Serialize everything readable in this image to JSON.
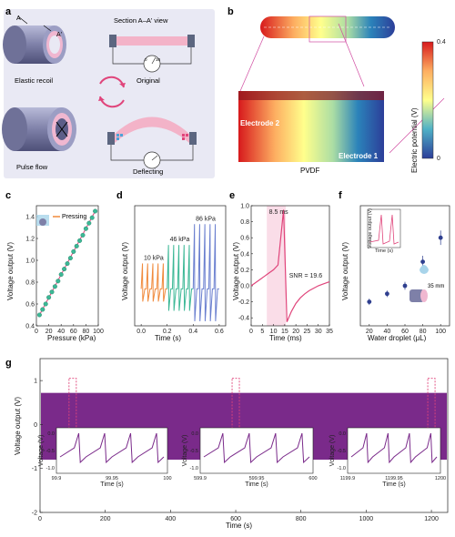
{
  "panels": {
    "a": {
      "label": "a",
      "section_title": "Section A–A' view",
      "marker_a": "A",
      "marker_a_prime": "A'",
      "elastic_recoil": "Elastic recoil",
      "original": "Original",
      "pulse_flow": "Pulse flow",
      "deflecting": "Deflecting",
      "meter_min": "0",
      "meter_max": "10",
      "colors": {
        "panel_bg": "#e9e9f4",
        "tube": "#7e80a8",
        "ring": "#f0b7d0",
        "beam": "#f3b3c8",
        "arrow": "#e0457b"
      }
    },
    "b": {
      "label": "b",
      "electrode2": "Electrode 2",
      "electrode1": "Electrode 1",
      "pvdf": "PVDF",
      "colorbar_label": "Electric potential (V)",
      "colorbar_max": "0.4",
      "colorbar_min": "0"
    },
    "c": {
      "label": "c",
      "legend": "Pressing"
    },
    "d": {
      "label": "d"
    },
    "e": {
      "label": "e"
    },
    "f": {
      "label": "f",
      "annotation": "35 mm"
    },
    "g": {
      "label": "g"
    }
  },
  "chart_data": [
    {
      "id": "c",
      "type": "scatter",
      "xlabel": "Pressure (kPa)",
      "ylabel": "Voltage output (V)",
      "xlim": [
        0,
        100
      ],
      "ylim": [
        0.4,
        1.5
      ],
      "xticks": [
        "0",
        "20",
        "40",
        "60",
        "80",
        "100"
      ],
      "yticks": [
        "0.4",
        "0.6",
        "0.8",
        "1.0",
        "1.2",
        "1.4"
      ],
      "x": [
        5,
        10,
        15,
        20,
        25,
        30,
        35,
        40,
        45,
        50,
        55,
        60,
        65,
        70,
        75,
        80,
        85,
        90,
        95
      ],
      "y": [
        0.5,
        0.55,
        0.6,
        0.66,
        0.71,
        0.76,
        0.81,
        0.87,
        0.92,
        0.97,
        1.02,
        1.08,
        1.13,
        1.18,
        1.23,
        1.29,
        1.34,
        1.39,
        1.45
      ],
      "fit_line": true,
      "colors": [
        "#3cb896",
        "#e0457b"
      ]
    },
    {
      "id": "d",
      "type": "line",
      "xlabel": "Time (s)",
      "ylabel": "Voltage output (V)",
      "xlim": [
        -0.05,
        0.65
      ],
      "ylim": [
        -0.8,
        1.8
      ],
      "xticks": [
        "0.0",
        "0.2",
        "0.4",
        "0.6"
      ],
      "series": [
        {
          "label": "10 kPa",
          "t_start": 0.0,
          "t_end": 0.2,
          "amplitude": 0.55,
          "color": "#f08a3c"
        },
        {
          "label": "46 kPa",
          "t_start": 0.2,
          "t_end": 0.4,
          "amplitude": 0.95,
          "color": "#3cb896"
        },
        {
          "label": "86 kPa",
          "t_start": 0.4,
          "t_end": 0.6,
          "amplitude": 1.4,
          "color": "#6a7fcf"
        }
      ]
    },
    {
      "id": "e",
      "type": "line",
      "xlabel": "Time (ms)",
      "ylabel": "Voltage output (V)",
      "xlim": [
        0,
        35
      ],
      "ylim": [
        -0.5,
        1.0
      ],
      "xticks": [
        "0",
        "5",
        "10",
        "15",
        "20",
        "25",
        "30",
        "35"
      ],
      "yticks": [
        "-0.4",
        "-0.2",
        "0.0",
        "0.2",
        "0.4",
        "0.6",
        "0.8",
        "1.0"
      ],
      "t": [
        0,
        2,
        4,
        6,
        8,
        10,
        12,
        14.5,
        16,
        18,
        20,
        22,
        24,
        26,
        28,
        30,
        32,
        34,
        35
      ],
      "v": [
        0.0,
        0.04,
        0.08,
        0.12,
        0.16,
        0.2,
        0.26,
        0.95,
        -0.45,
        -0.32,
        -0.22,
        -0.15,
        -0.1,
        -0.06,
        -0.03,
        0.0,
        0.02,
        0.04,
        0.05
      ],
      "annotations": {
        "duration": "8.5 ms",
        "snr": "SNR = 19.6"
      },
      "color": "#e0457b"
    },
    {
      "id": "f",
      "type": "scatter",
      "xlabel": "Water droplet (μL)",
      "ylabel": "Voltage output (V)",
      "xlim": [
        10,
        110
      ],
      "ylim": [
        0.04,
        0.34
      ],
      "xticks": [
        "20",
        "40",
        "60",
        "80",
        "100"
      ],
      "x": [
        20,
        40,
        60,
        80,
        100
      ],
      "y": [
        0.1,
        0.12,
        0.14,
        0.2,
        0.26
      ],
      "err": [
        0.008,
        0.008,
        0.01,
        0.015,
        0.018
      ],
      "inset": {
        "ylabel": "Voltage output (V)",
        "xlabel": "Time (s)"
      },
      "color": "#2f3f8f"
    },
    {
      "id": "g",
      "type": "line",
      "xlabel": "Time (s)",
      "ylabel": "Voltage output (V)",
      "xlim": [
        0,
        1250
      ],
      "ylim": [
        -2,
        1.5
      ],
      "xticks": [
        "0",
        "200",
        "400",
        "600",
        "800",
        "1000",
        "1200"
      ],
      "yticks": [
        "1",
        "0",
        "-1",
        "-2"
      ],
      "band": {
        "high": 0.72,
        "low": -0.8
      },
      "highlight_windows": [
        100,
        600,
        1200
      ],
      "color": "#7a2a8a",
      "insets": [
        {
          "xticks": [
            "99.9",
            "99.95",
            "100"
          ],
          "yticks": [
            "0.0",
            "-0.5",
            "-1.0"
          ],
          "ylabel": "Voltage (V)",
          "xlabel": "Time (s)"
        },
        {
          "xticks": [
            "599.9",
            "599.95",
            "600"
          ],
          "yticks": [
            "0.0",
            "-0.5",
            "-1.0"
          ],
          "ylabel": "Voltage (V)",
          "xlabel": "Time (s)"
        },
        {
          "xticks": [
            "1199.9",
            "1199.95",
            "1200"
          ],
          "yticks": [
            "0.0",
            "-0.5",
            "-1.0"
          ],
          "ylabel": "Voltage (V)",
          "xlabel": "Time (s)"
        }
      ]
    }
  ]
}
